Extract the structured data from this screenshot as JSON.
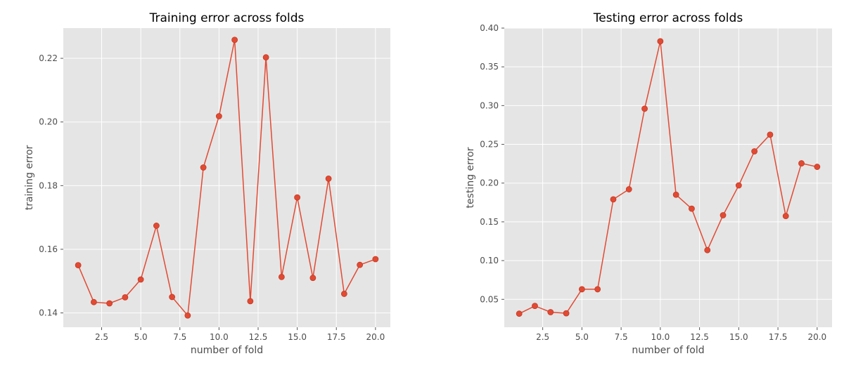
{
  "colors": {
    "series": "#e24a33",
    "panel": "#e5e5e5",
    "grid": "#ffffff"
  },
  "chart_data": [
    {
      "type": "line",
      "title": "Training error across folds",
      "xlabel": "number of fold",
      "ylabel": "training error",
      "xlim": [
        0.05,
        20.95
      ],
      "ylim": [
        0.1355,
        0.2295
      ],
      "xticks": [
        2.5,
        5.0,
        7.5,
        10.0,
        12.5,
        15.0,
        17.5,
        20.0
      ],
      "xtick_labels": [
        "2.5",
        "5.0",
        "7.5",
        "10.0",
        "12.5",
        "15.0",
        "17.5",
        "20.0"
      ],
      "yticks": [
        0.14,
        0.16,
        0.18,
        0.2,
        0.22
      ],
      "ytick_labels": [
        "0.14",
        "0.16",
        "0.18",
        "0.20",
        "0.22"
      ],
      "grid": true,
      "marker": "circle",
      "x": [
        1,
        2,
        3,
        4,
        5,
        6,
        7,
        8,
        9,
        10,
        11,
        12,
        13,
        14,
        15,
        16,
        17,
        18,
        19,
        20
      ],
      "y": [
        0.155,
        0.1434,
        0.143,
        0.1449,
        0.1505,
        0.1674,
        0.145,
        0.1392,
        0.1857,
        0.2018,
        0.2258,
        0.1437,
        0.2203,
        0.1513,
        0.1763,
        0.151,
        0.1822,
        0.146,
        0.1551,
        0.1569
      ]
    },
    {
      "type": "line",
      "title": "Testing error across folds",
      "xlabel": "number of fold",
      "ylabel": "testing error",
      "xlim": [
        0.05,
        20.95
      ],
      "ylim": [
        0.014,
        0.4
      ],
      "xticks": [
        2.5,
        5.0,
        7.5,
        10.0,
        12.5,
        15.0,
        17.5,
        20.0
      ],
      "xtick_labels": [
        "2.5",
        "5.0",
        "7.5",
        "10.0",
        "12.5",
        "15.0",
        "17.5",
        "20.0"
      ],
      "yticks": [
        0.05,
        0.1,
        0.15,
        0.2,
        0.25,
        0.3,
        0.35,
        0.4
      ],
      "ytick_labels": [
        "0.05",
        "0.10",
        "0.15",
        "0.20",
        "0.25",
        "0.30",
        "0.35",
        "0.40"
      ],
      "grid": true,
      "marker": "circle",
      "x": [
        1,
        2,
        3,
        4,
        5,
        6,
        7,
        8,
        9,
        10,
        11,
        12,
        13,
        14,
        15,
        16,
        17,
        18,
        19,
        20
      ],
      "y": [
        0.0315,
        0.0415,
        0.0335,
        0.032,
        0.063,
        0.063,
        0.179,
        0.192,
        0.296,
        0.383,
        0.185,
        0.167,
        0.1135,
        0.1585,
        0.197,
        0.241,
        0.2625,
        0.1575,
        0.2255,
        0.221
      ]
    }
  ]
}
